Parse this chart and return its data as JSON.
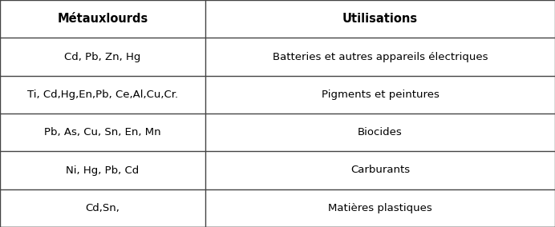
{
  "col1_header": "Métauxlourds",
  "col2_header": "Utilisations",
  "rows": [
    [
      "Cd, Pb, Zn, Hg",
      "Batteries et autres appareils électriques"
    ],
    [
      "Ti, Cd,Hg,En,Pb, Ce,Al,Cu,Cr.",
      "Pigments et peintures"
    ],
    [
      "Pb, As, Cu, Sn, En, Mn",
      "Biocides"
    ],
    [
      "Ni, Hg, Pb, Cd",
      "Carburants"
    ],
    [
      "Cd,Sn,",
      "Matières plastiques"
    ]
  ],
  "header_fontsize": 10.5,
  "cell_fontsize": 9.5,
  "bg_color": "#ffffff",
  "line_color": "#444444",
  "text_color": "#000000",
  "col_split": 0.37,
  "lw": 1.0
}
